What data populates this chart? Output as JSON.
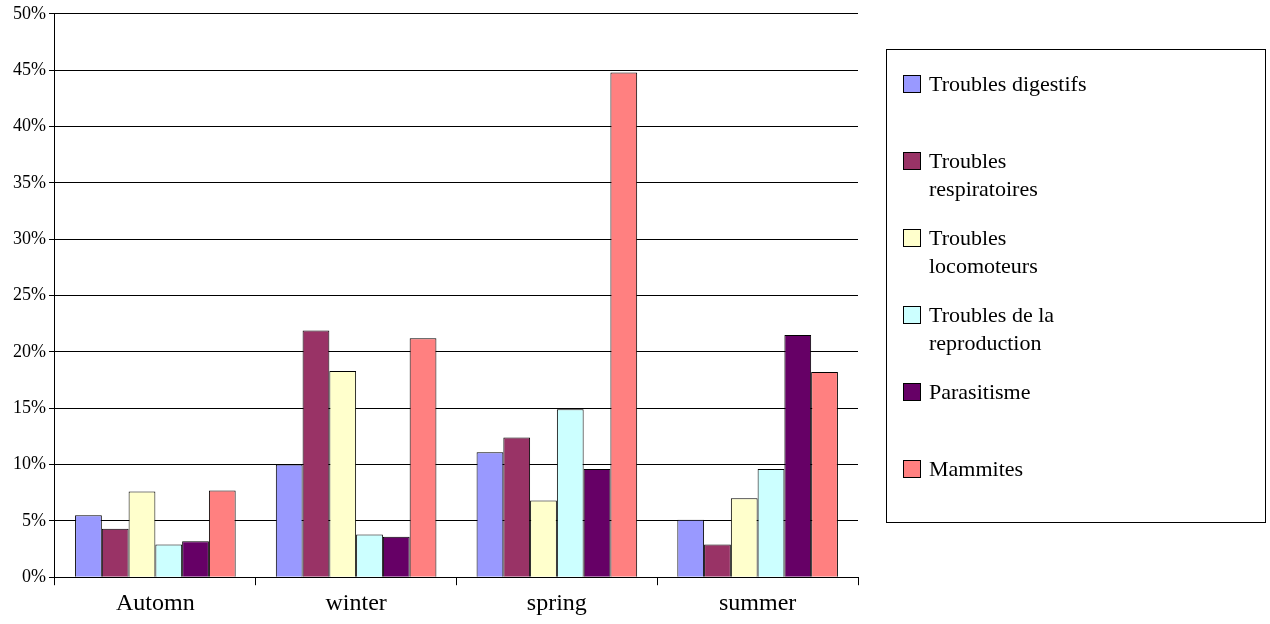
{
  "chart_data": {
    "type": "bar",
    "categories": [
      "Automn",
      "winter",
      "spring",
      "summer"
    ],
    "series": [
      {
        "name": "Troubles digestifs",
        "color": "#9999ff",
        "values": [
          5.5,
          10.0,
          11.1,
          5.1
        ]
      },
      {
        "name": "Troubles respiratoires",
        "color": "#993366",
        "values": [
          4.3,
          21.9,
          12.4,
          2.9
        ]
      },
      {
        "name": "Troubles locomoteurs",
        "color": "#ffffcc",
        "values": [
          7.6,
          18.3,
          6.8,
          7.0
        ]
      },
      {
        "name": "Troubles de la reproduction",
        "color": "#ccffff",
        "values": [
          2.9,
          3.8,
          14.9,
          9.6
        ]
      },
      {
        "name": "Parasitisme",
        "color": "#660066",
        "values": [
          3.2,
          3.6,
          9.6,
          21.5
        ]
      },
      {
        "name": "Mammites",
        "color": "#ff8080",
        "values": [
          7.7,
          21.2,
          44.8,
          18.2
        ]
      }
    ],
    "ylim": [
      0,
      50
    ],
    "yticks": [
      {
        "value": 0,
        "label": "0%"
      },
      {
        "value": 5,
        "label": "5%"
      },
      {
        "value": 10,
        "label": "10%"
      },
      {
        "value": 15,
        "label": "15%"
      },
      {
        "value": 20,
        "label": "20%"
      },
      {
        "value": 25,
        "label": "25%"
      },
      {
        "value": 30,
        "label": "30%"
      },
      {
        "value": 35,
        "label": "35%"
      },
      {
        "value": 40,
        "label": "40%"
      },
      {
        "value": 45,
        "label": "45%"
      },
      {
        "value": 50,
        "label": "50%"
      }
    ],
    "grid": "y",
    "legend": "right"
  }
}
